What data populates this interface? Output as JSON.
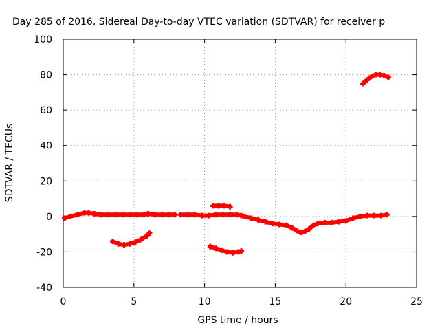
{
  "chart_data": {
    "type": "scatter",
    "title": "Day 285 of 2016, Sidereal Day-to-day VTEC variation (SDTVAR) for receiver p",
    "xlabel": "GPS time / hours",
    "ylabel": "SDTVAR / TECUs",
    "xlim": [
      0,
      25
    ],
    "ylim": [
      -40,
      100
    ],
    "x_ticks": [
      0,
      5,
      10,
      15,
      20,
      25
    ],
    "y_ticks": [
      -40,
      -20,
      0,
      20,
      40,
      60,
      80,
      100
    ],
    "x_tick_labels": [
      "0",
      "5",
      "10",
      "15",
      "20",
      "25"
    ],
    "y_tick_labels": [
      "-40",
      "-20",
      "0",
      "20",
      "40",
      "60",
      "80",
      "100"
    ],
    "grid": true,
    "marker": "+",
    "color": "#ff0000",
    "series": [
      {
        "x": [
          0.1,
          0.5,
          1.0,
          1.5,
          1.8,
          2.2,
          2.7,
          3.2,
          3.7,
          4.2,
          4.7,
          5.2,
          5.7,
          6.0,
          6.5,
          7.0,
          7.5,
          7.9
        ],
        "y": [
          -1,
          0,
          1,
          2,
          2,
          1.5,
          1,
          1,
          1,
          1,
          1,
          1,
          1,
          1.5,
          1,
          1,
          1,
          1
        ]
      },
      {
        "x": [
          3.5,
          3.9,
          4.3,
          4.7,
          5.1,
          5.5,
          5.9,
          6.1
        ],
        "y": [
          -14,
          -15.5,
          -16,
          -15.5,
          -14.5,
          -13,
          -11,
          -9.5
        ]
      },
      {
        "x": [
          8.3,
          8.8,
          9.3,
          9.8,
          10.3,
          10.8,
          11.3,
          11.8,
          12.3,
          12.6
        ],
        "y": [
          1,
          1,
          1,
          0.5,
          0.5,
          1,
          1,
          1,
          1,
          0.5
        ]
      },
      {
        "x": [
          10.6,
          11.0,
          11.4,
          11.8
        ],
        "y": [
          6,
          6,
          6,
          5.5
        ]
      },
      {
        "x": [
          10.4,
          10.8,
          11.2,
          11.6,
          12.0,
          12.4,
          12.6
        ],
        "y": [
          -17,
          -18,
          -19,
          -20,
          -20.5,
          -20,
          -19.5
        ]
      },
      {
        "x": [
          12.8,
          13.3,
          13.8,
          14.3,
          14.8,
          15.3,
          15.8,
          16.2,
          16.5,
          16.8,
          17.1,
          17.4,
          17.7,
          18.0,
          18.5,
          19.0,
          19.5,
          20.0,
          20.5,
          21.0,
          21.5,
          22.0,
          22.5,
          22.9
        ],
        "y": [
          0,
          -1,
          -2,
          -3,
          -4,
          -4.5,
          -5,
          -6.5,
          -8,
          -9,
          -8.5,
          -7,
          -5,
          -4,
          -3.5,
          -3.5,
          -3,
          -2.5,
          -1,
          0,
          0.5,
          0.5,
          0.5,
          1
        ]
      },
      {
        "x": [
          21.2,
          21.5,
          21.8,
          22.1,
          22.4,
          22.7,
          23.0
        ],
        "y": [
          75,
          77,
          79,
          80,
          80,
          79.5,
          78.5
        ]
      }
    ]
  }
}
